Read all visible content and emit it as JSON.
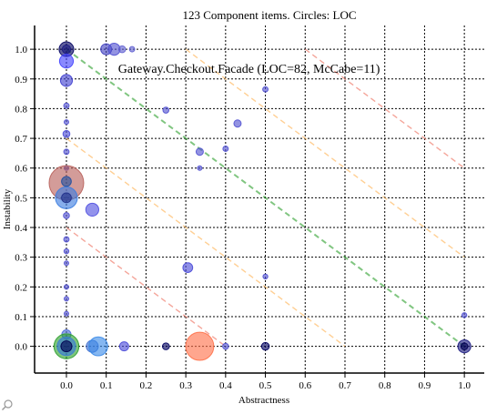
{
  "chart_data": {
    "type": "scatter",
    "title": "123 Component items. Circles: LOC",
    "xlabel": "Abstractness",
    "ylabel": "Instability",
    "xlim": [
      -0.08,
      1.05
    ],
    "ylim": [
      -0.09,
      1.08
    ],
    "xticks": [
      "0.0",
      "0.1",
      "0.2",
      "0.3",
      "0.4",
      "0.5",
      "0.6",
      "0.7",
      "0.8",
      "0.9",
      "1.0"
    ],
    "yticks": [
      "0.0",
      "0.1",
      "0.2",
      "0.3",
      "0.4",
      "0.5",
      "0.6",
      "0.7",
      "0.8",
      "0.9",
      "1.0"
    ],
    "grid": true,
    "annotation": {
      "text": "Gateway.Checkout.Facade (LOC=82, McCabe=11)",
      "x": 0.13,
      "y": 0.92
    },
    "main_sequence": {
      "from": [
        0,
        1
      ],
      "to": [
        1,
        0
      ],
      "color": "#2ca02c"
    },
    "zone_lines": [
      {
        "from": [
          0,
          0.7
        ],
        "to": [
          0.7,
          0
        ],
        "color": "#ffbb66"
      },
      {
        "from": [
          0.3,
          1
        ],
        "to": [
          1,
          0.3
        ],
        "color": "#ffbb66"
      },
      {
        "from": [
          0,
          0.4
        ],
        "to": [
          0.4,
          0
        ],
        "color": "#f08070"
      },
      {
        "from": [
          0.6,
          1
        ],
        "to": [
          1,
          0.6
        ],
        "color": "#f08070"
      }
    ],
    "points": [
      {
        "x": 0.0,
        "y": 1.0,
        "loc": 90,
        "color": "#000060"
      },
      {
        "x": 0.0,
        "y": 1.0,
        "loc": 30,
        "color": "#1a1a80"
      },
      {
        "x": 0.0,
        "y": 0.96,
        "loc": 80,
        "color": "#4040ff"
      },
      {
        "x": 0.0,
        "y": 0.895,
        "loc": 60,
        "color": "#4040d0"
      },
      {
        "x": 0.0,
        "y": 0.81,
        "loc": 12,
        "color": "#5050d0"
      },
      {
        "x": 0.0,
        "y": 0.755,
        "loc": 8,
        "color": "#5050d0"
      },
      {
        "x": 0.0,
        "y": 0.715,
        "loc": 20,
        "color": "#4a4ad8"
      },
      {
        "x": 0.0,
        "y": 0.655,
        "loc": 12,
        "color": "#5050d0"
      },
      {
        "x": 0.0,
        "y": 0.6,
        "loc": 8,
        "color": "#5050d0"
      },
      {
        "x": 0.0,
        "y": 0.55,
        "loc": 500,
        "color": "#b8605a"
      },
      {
        "x": 0.0,
        "y": 0.555,
        "loc": 40,
        "color": "#2050a0"
      },
      {
        "x": 0.0,
        "y": 0.5,
        "loc": 200,
        "color": "#3b7de0"
      },
      {
        "x": 0.0,
        "y": 0.5,
        "loc": 40,
        "color": "#20308a"
      },
      {
        "x": 0.0,
        "y": 0.44,
        "loc": 15,
        "color": "#5050d0"
      },
      {
        "x": 0.0,
        "y": 0.36,
        "loc": 12,
        "color": "#5050d0"
      },
      {
        "x": 0.0,
        "y": 0.32,
        "loc": 10,
        "color": "#5050d0"
      },
      {
        "x": 0.0,
        "y": 0.28,
        "loc": 8,
        "color": "#5050d0"
      },
      {
        "x": 0.0,
        "y": 0.2,
        "loc": 6,
        "color": "#5050d0"
      },
      {
        "x": 0.0,
        "y": 0.16,
        "loc": 8,
        "color": "#5050d0"
      },
      {
        "x": 0.0,
        "y": 0.11,
        "loc": 8,
        "color": "#5050d0"
      },
      {
        "x": 0.0,
        "y": 0.04,
        "loc": 35,
        "color": "#4a6ad8"
      },
      {
        "x": 0.0,
        "y": 0.0,
        "loc": 260,
        "color": "#2ca02c"
      },
      {
        "x": 0.0,
        "y": 0.0,
        "loc": 140,
        "color": "#3a7ad8"
      },
      {
        "x": 0.0,
        "y": 0.0,
        "loc": 50,
        "color": "#000050"
      },
      {
        "x": 0.1,
        "y": 1.0,
        "loc": 50,
        "color": "#4040c0"
      },
      {
        "x": 0.12,
        "y": 1.0,
        "loc": 60,
        "color": "#5050d0"
      },
      {
        "x": 0.14,
        "y": 1.0,
        "loc": 20,
        "color": "#6060d0"
      },
      {
        "x": 0.165,
        "y": 1.0,
        "loc": 12,
        "color": "#6060d0"
      },
      {
        "x": 0.065,
        "y": 0.46,
        "loc": 70,
        "color": "#5050e0"
      },
      {
        "x": 0.25,
        "y": 0.795,
        "loc": 15,
        "color": "#5050d0"
      },
      {
        "x": 0.43,
        "y": 0.75,
        "loc": 22,
        "color": "#5050d0"
      },
      {
        "x": 0.335,
        "y": 0.655,
        "loc": 22,
        "color": "#5050d0"
      },
      {
        "x": 0.4,
        "y": 0.665,
        "loc": 12,
        "color": "#5050d0"
      },
      {
        "x": 0.335,
        "y": 0.6,
        "loc": 8,
        "color": "#5050d0"
      },
      {
        "x": 0.5,
        "y": 0.865,
        "loc": 12,
        "color": "#5050d0"
      },
      {
        "x": 0.305,
        "y": 0.265,
        "loc": 40,
        "color": "#4a4ad8"
      },
      {
        "x": 0.5,
        "y": 0.235,
        "loc": 10,
        "color": "#5050d0"
      },
      {
        "x": 0.065,
        "y": 0.0,
        "loc": 60,
        "color": "#4070d0"
      },
      {
        "x": 0.08,
        "y": 0.0,
        "loc": 150,
        "color": "#3a8ae8"
      },
      {
        "x": 0.145,
        "y": 0.0,
        "loc": 35,
        "color": "#4a4ad8"
      },
      {
        "x": 0.25,
        "y": 0.0,
        "loc": 20,
        "color": "#000060"
      },
      {
        "x": 0.335,
        "y": 0.0,
        "loc": 330,
        "color": "#ff7048"
      },
      {
        "x": 0.4,
        "y": 0.0,
        "loc": 15,
        "color": "#5050d0"
      },
      {
        "x": 0.5,
        "y": 0.0,
        "loc": 25,
        "color": "#000060"
      },
      {
        "x": 1.0,
        "y": 0.0,
        "loc": 70,
        "color": "#1a1a80"
      },
      {
        "x": 1.0,
        "y": 0.0,
        "loc": 20,
        "color": "#000050"
      },
      {
        "x": 1.0,
        "y": 0.105,
        "loc": 10,
        "color": "#5050d0"
      }
    ]
  },
  "icons": {
    "zoom": "zoom-icon"
  }
}
